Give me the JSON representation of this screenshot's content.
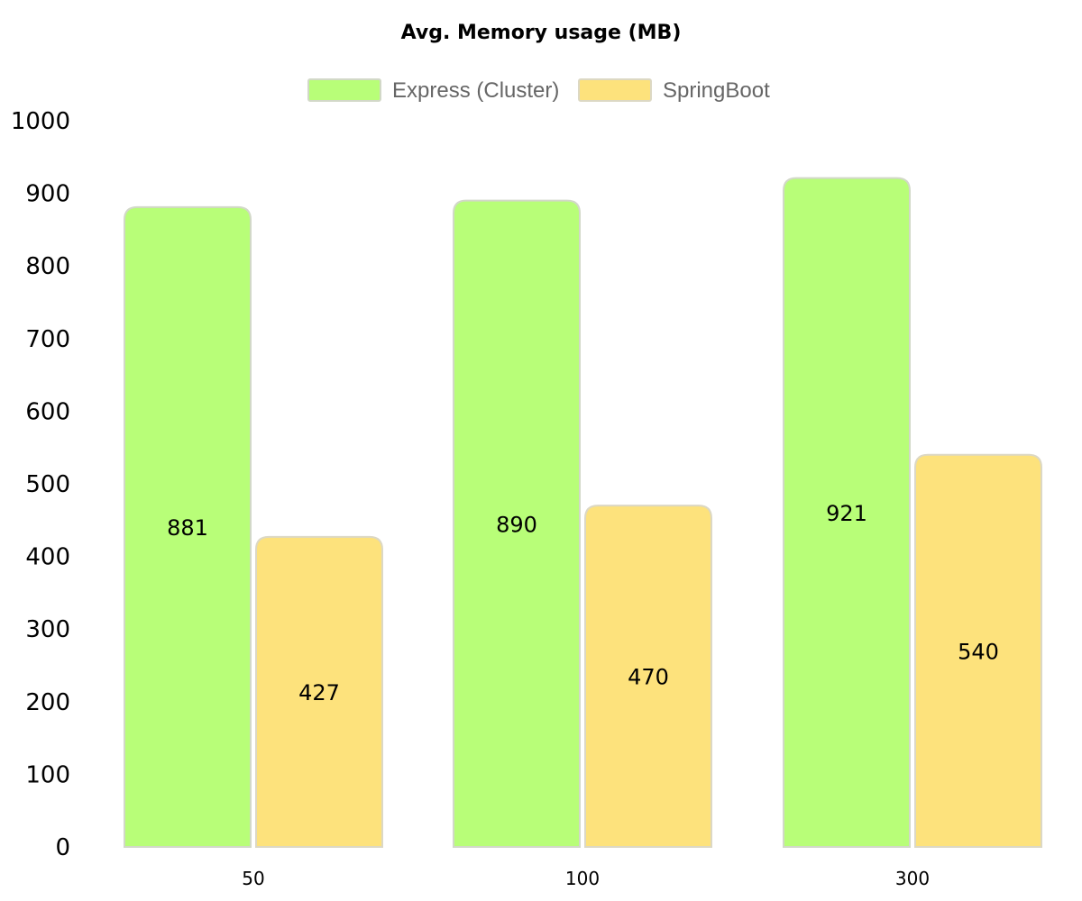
{
  "chart_data": {
    "type": "bar",
    "title": "Avg. Memory usage (MB)",
    "xlabel": "",
    "ylabel": "",
    "categories": [
      "50",
      "100",
      "300"
    ],
    "series": [
      {
        "name": "Express (Cluster)",
        "values": [
          881,
          890,
          921
        ],
        "color": "#b8fe78",
        "border": "#d2d8c8"
      },
      {
        "name": "SpringBoot",
        "values": [
          427,
          470,
          540
        ],
        "color": "#fde27c",
        "border": "#dcd8c4"
      }
    ],
    "ylim": [
      0,
      1000
    ],
    "yticks": [
      "0",
      "100",
      "200",
      "300",
      "400",
      "500",
      "600",
      "700",
      "800",
      "900",
      "1000"
    ],
    "grid": false,
    "legend_position": "top-center",
    "data_labels": true
  }
}
